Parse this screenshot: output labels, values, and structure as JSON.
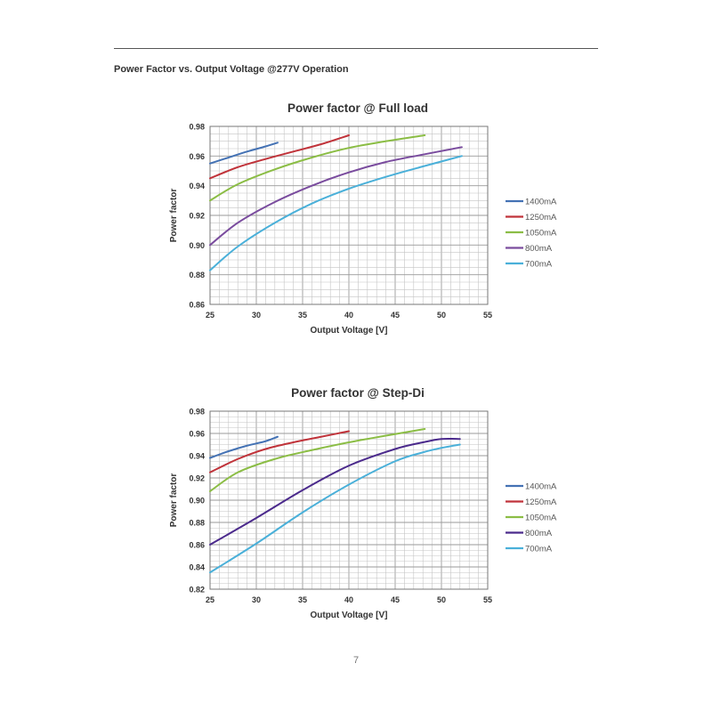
{
  "document": {
    "section_heading": "Power Factor vs. Output Voltage @277V Operation",
    "page_number": "7"
  },
  "chart_data": [
    {
      "type": "line",
      "title": "Power factor @ Full load",
      "xlabel": "Output Voltage [V]",
      "ylabel": "Power factor",
      "xlim": [
        25,
        55
      ],
      "ylim": [
        0.86,
        0.98
      ],
      "xticks": [
        "25",
        "30",
        "35",
        "40",
        "45",
        "50",
        "55"
      ],
      "yticks": [
        "0.86",
        "0.88",
        "0.90",
        "0.92",
        "0.94",
        "0.96",
        "0.98"
      ],
      "grid": true,
      "legend_position": "right",
      "series": [
        {
          "name": "1400mA",
          "color": "#4472b4",
          "x": [
            25,
            27,
            29,
            31,
            32.3
          ],
          "y": [
            0.955,
            0.959,
            0.963,
            0.9665,
            0.969
          ]
        },
        {
          "name": "1250mA",
          "color": "#c0333a",
          "x": [
            25,
            28,
            31,
            34,
            37,
            40
          ],
          "y": [
            0.945,
            0.9525,
            0.958,
            0.963,
            0.968,
            0.974
          ]
        },
        {
          "name": "1050mA",
          "color": "#8bbd45",
          "x": [
            25,
            28,
            32,
            36,
            40,
            44,
            48.2
          ],
          "y": [
            0.93,
            0.941,
            0.951,
            0.959,
            0.9655,
            0.97,
            0.974
          ]
        },
        {
          "name": "800mA",
          "color": "#7a4c9e",
          "x": [
            25,
            28,
            32,
            36,
            40,
            44,
            48,
            52.2
          ],
          "y": [
            0.9,
            0.915,
            0.929,
            0.94,
            0.949,
            0.956,
            0.961,
            0.966
          ]
        },
        {
          "name": "700mA",
          "color": "#4ab0d9",
          "x": [
            25,
            28,
            32,
            36,
            40,
            44,
            48,
            52.2
          ],
          "y": [
            0.883,
            0.899,
            0.915,
            0.928,
            0.938,
            0.946,
            0.953,
            0.96
          ]
        }
      ]
    },
    {
      "type": "line",
      "title": "Power factor @ Step-Di",
      "xlabel": "Output Voltage [V]",
      "ylabel": "Power factor",
      "xlim": [
        25,
        55
      ],
      "ylim": [
        0.82,
        0.98
      ],
      "xticks": [
        "25",
        "30",
        "35",
        "40",
        "45",
        "50",
        "55"
      ],
      "yticks": [
        "0.82",
        "0.84",
        "0.86",
        "0.88",
        "0.90",
        "0.92",
        "0.94",
        "0.96",
        "0.98"
      ],
      "grid": true,
      "legend_position": "right",
      "series": [
        {
          "name": "1400mA",
          "color": "#4472b4",
          "x": [
            25,
            27,
            29,
            31,
            32.3
          ],
          "y": [
            0.938,
            0.944,
            0.949,
            0.953,
            0.957
          ]
        },
        {
          "name": "1250mA",
          "color": "#c0333a",
          "x": [
            25,
            28,
            31,
            34,
            37,
            40
          ],
          "y": [
            0.925,
            0.937,
            0.946,
            0.952,
            0.957,
            0.962
          ]
        },
        {
          "name": "1050mA",
          "color": "#8bbd45",
          "x": [
            25,
            28,
            32,
            36,
            40,
            44,
            48.2
          ],
          "y": [
            0.908,
            0.925,
            0.937,
            0.945,
            0.952,
            0.958,
            0.964
          ]
        },
        {
          "name": "800mA",
          "color": "#4b2a8c",
          "x": [
            25,
            30,
            35,
            40,
            45,
            48,
            50,
            52
          ],
          "y": [
            0.86,
            0.884,
            0.909,
            0.931,
            0.946,
            0.952,
            0.955,
            0.955
          ]
        },
        {
          "name": "700mA",
          "color": "#4ab0d9",
          "x": [
            25,
            30,
            35,
            40,
            45,
            48,
            50,
            52
          ],
          "y": [
            0.835,
            0.861,
            0.889,
            0.914,
            0.935,
            0.943,
            0.947,
            0.95
          ]
        }
      ]
    }
  ]
}
